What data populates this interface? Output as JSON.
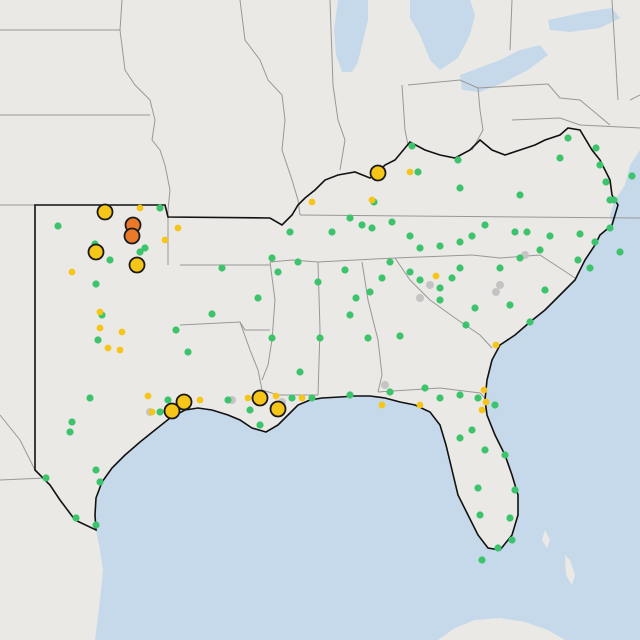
{
  "map": {
    "colors": {
      "land": "#ebe9e6",
      "water": "#c6d9ea",
      "state_border": "#9a9896",
      "region_border": "#111111",
      "green": "#3cc46d",
      "yellow": "#f5c518",
      "orange": "#e87a2a",
      "gray": "#c4c4c4",
      "marker_outline": "#1a1a1a"
    },
    "legend_categories": [
      {
        "name": "green",
        "icon": "small-green-dot"
      },
      {
        "name": "yellow",
        "icon": "small-yellow-dot"
      },
      {
        "name": "gray",
        "icon": "small-gray-dot"
      },
      {
        "name": "large-yellow",
        "icon": "large-yellow-circle"
      },
      {
        "name": "large-orange",
        "icon": "large-orange-circle"
      }
    ]
  }
}
